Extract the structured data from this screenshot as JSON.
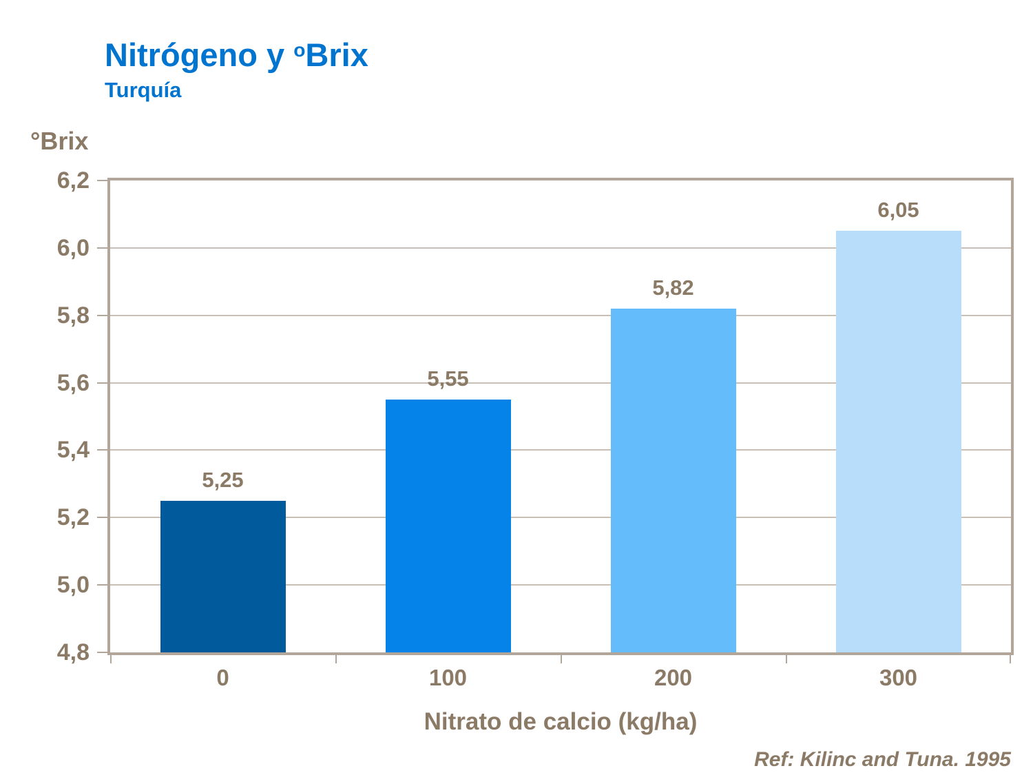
{
  "header": {
    "title_main": "Nitrógeno y ",
    "title_sup": "o",
    "title_tail": "Brix",
    "subtitle": "Turquía"
  },
  "y_axis_title": "°Brix",
  "x_axis_title": "Nitrato de calcio (kg/ha)",
  "footer": {
    "reference": "Ref: Kilinc and Tuna. 1995"
  },
  "colors": {
    "title_blue": "#0074CE",
    "text_brown": "#8A7A66",
    "axis_frame": "#B2A69A",
    "gridline": "#C9BFB5"
  },
  "chart_data": {
    "type": "bar",
    "title": "Nitrógeno y ºBrix",
    "subtitle": "Turquía",
    "xlabel": "Nitrato de calcio (kg/ha)",
    "ylabel": "°Brix",
    "categories": [
      "0",
      "100",
      "200",
      "300"
    ],
    "values": [
      5.25,
      5.55,
      5.82,
      6.05
    ],
    "value_labels": [
      "5,25",
      "5,55",
      "5,82",
      "6,05"
    ],
    "bar_colors": [
      "#015A9B",
      "#0583E8",
      "#65BCFA",
      "#B7DDFB"
    ],
    "ylim": [
      4.8,
      6.2
    ],
    "yticks": [
      {
        "value": 4.8,
        "label": "4,8"
      },
      {
        "value": 5.0,
        "label": "5,0"
      },
      {
        "value": 5.2,
        "label": "5,2"
      },
      {
        "value": 5.4,
        "label": "5,4"
      },
      {
        "value": 5.6,
        "label": "5,6"
      },
      {
        "value": 5.8,
        "label": "5,8"
      },
      {
        "value": 6.0,
        "label": "6,0"
      },
      {
        "value": 6.2,
        "label": "6,2"
      }
    ],
    "grid": true,
    "legend": false,
    "reference": "Ref: Kilinc and Tuna. 1995"
  }
}
